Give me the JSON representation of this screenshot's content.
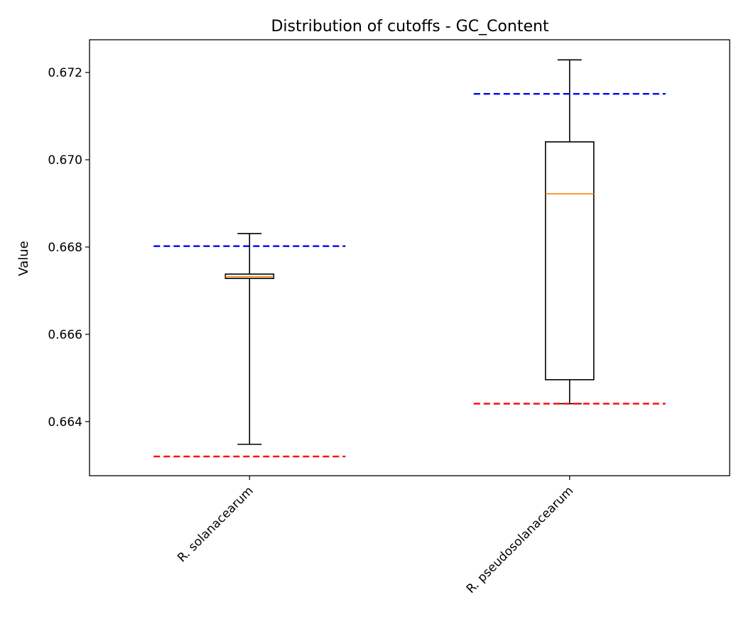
{
  "chart_data": {
    "type": "box",
    "title": "Distribution of cutoffs - GC_Content",
    "xlabel": "",
    "ylabel": "Value",
    "ylim": [
      0.66276,
      0.67275
    ],
    "yticks": [
      0.664,
      0.666,
      0.668,
      0.67,
      0.672
    ],
    "ytick_labels": [
      "0.664",
      "0.666",
      "0.668",
      "0.670",
      "0.672"
    ],
    "grid": false,
    "categories": [
      "R. solanacearum",
      "R. pseudosolanacearum"
    ],
    "boxes": [
      {
        "whisker_low": 0.66348,
        "q1": 0.66728,
        "median": 0.66732,
        "q3": 0.66738,
        "whisker_high": 0.66831
      },
      {
        "whisker_low": 0.66441,
        "q1": 0.66496,
        "median": 0.66922,
        "q3": 0.67041,
        "whisker_high": 0.67229
      }
    ],
    "upper_cutoffs": [
      0.66802,
      0.67151
    ],
    "lower_cutoffs": [
      0.6632,
      0.66441
    ],
    "colors": {
      "box": "#000000",
      "median": "#ff7f0e",
      "upper_cutoff": "#0000ff",
      "lower_cutoff": "#ff0000"
    }
  }
}
